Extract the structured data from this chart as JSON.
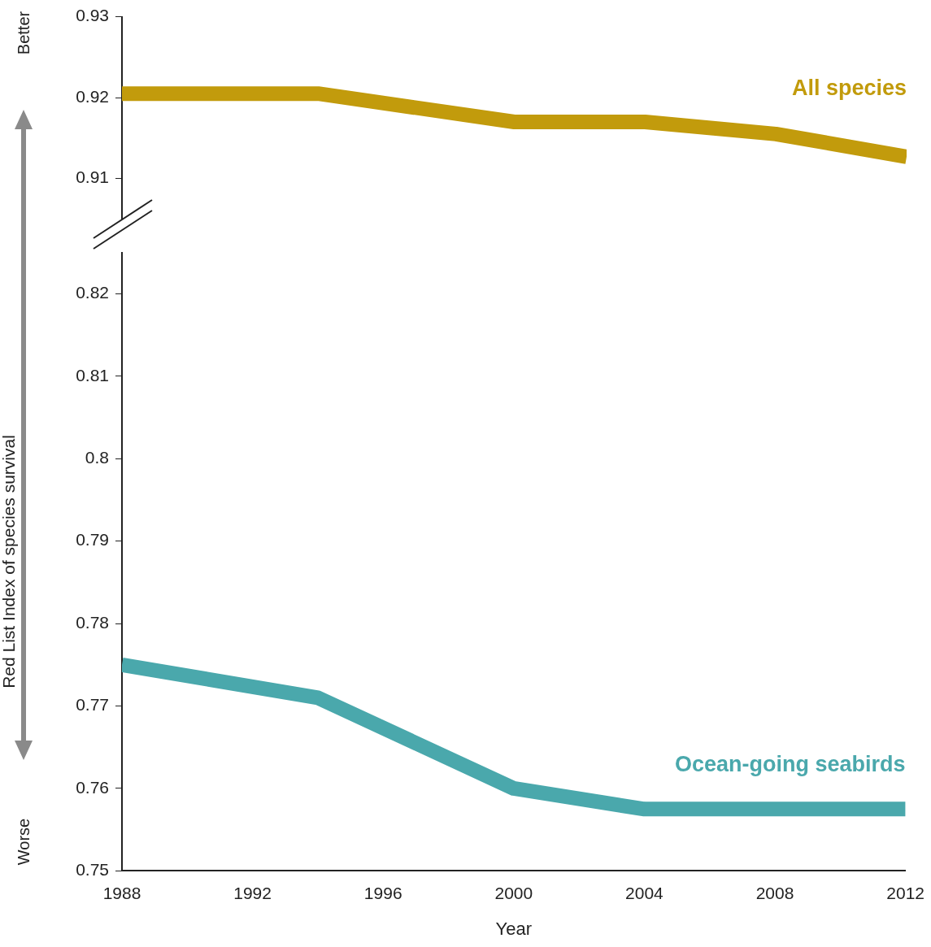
{
  "chart_data": [
    {
      "type": "line",
      "x": [
        1988,
        1994,
        2000,
        2004,
        2008,
        2012
      ],
      "xlim": [
        1988,
        2012
      ],
      "xticks": [
        1988,
        1992,
        1996,
        2000,
        2004,
        2008,
        2012
      ],
      "ylim": [
        0.905,
        0.93
      ],
      "yticks": [
        0.91,
        0.92,
        0.93
      ],
      "tick_labels": "y",
      "grid": false,
      "marker": "none",
      "annotations": [
        "Better"
      ],
      "series": [
        {
          "name": "All species",
          "color": "#c29b0c",
          "values": [
            0.9205,
            0.9205,
            0.917,
            0.917,
            0.9155,
            0.9127
          ]
        }
      ]
    },
    {
      "type": "line",
      "x": [
        1988,
        1994,
        2000,
        2004,
        2008,
        2012
      ],
      "xlim": [
        1988,
        2012
      ],
      "xticks": [
        1988,
        1992,
        1996,
        2000,
        2004,
        2008,
        2012
      ],
      "ylim": [
        0.75,
        0.825
      ],
      "yticks": [
        0.75,
        0.76,
        0.77,
        0.78,
        0.79,
        0.8,
        0.81,
        0.82
      ],
      "xlabel": "Year",
      "ylabel": "Red List Index of species survival",
      "grid": false,
      "marker": "none",
      "annotations": [
        "Worse"
      ],
      "series": [
        {
          "name": "Ocean-going seabirds",
          "color": "#4aa8ac",
          "values": [
            0.775,
            0.771,
            0.76,
            0.7575,
            0.7575,
            0.7575
          ]
        }
      ]
    }
  ]
}
